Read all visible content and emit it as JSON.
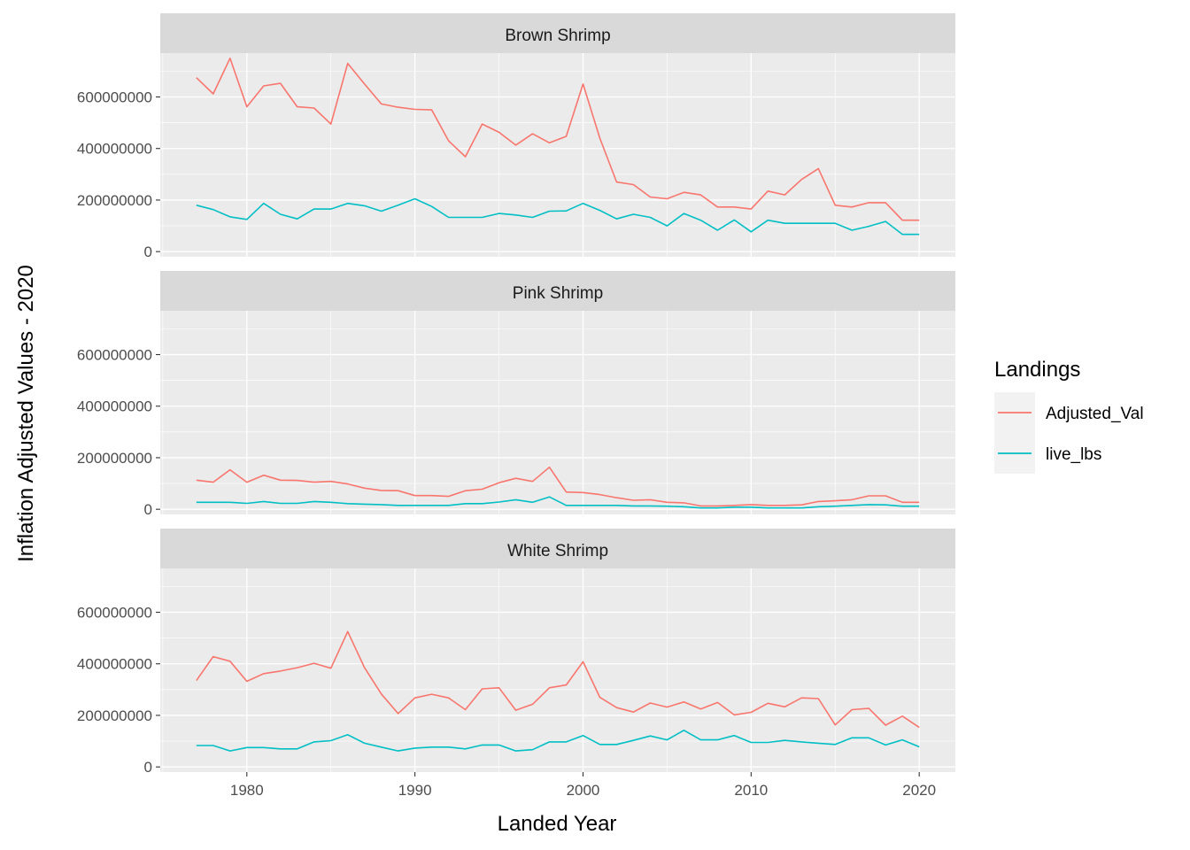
{
  "chart_data": {
    "type": "line",
    "xlabel": "Landed Year",
    "ylabel": "Inflation Adjusted Values - 2020",
    "xlim": [
      1974.85,
      1022.15
    ],
    "ylim": [
      -20000000,
      770000000
    ],
    "x_ticks": [
      1980,
      1990,
      2000,
      2010,
      2020
    ],
    "x_tick_labels": [
      "1980",
      "1990",
      "2000",
      "2010",
      "2020"
    ],
    "y_ticks": [
      0,
      200000000,
      400000000,
      600000000
    ],
    "y_tick_labels": [
      "0",
      "200000000",
      "400000000",
      "600000000"
    ],
    "grid": true,
    "legend": {
      "title": "Landings",
      "position": "right",
      "entries": [
        {
          "label": "Adjusted_Val",
          "color": "#F8766D"
        },
        {
          "label": "live_lbs",
          "color": "#00BFC4"
        }
      ]
    },
    "years": [
      1977,
      1978,
      1979,
      1980,
      1981,
      1982,
      1983,
      1984,
      1985,
      1986,
      1987,
      1988,
      1989,
      1990,
      1991,
      1992,
      1993,
      1994,
      1995,
      1996,
      1997,
      1998,
      1999,
      2000,
      2001,
      2002,
      2003,
      2004,
      2005,
      2006,
      2007,
      2008,
      2009,
      2010,
      2011,
      2012,
      2013,
      2014,
      2015,
      2016,
      2017,
      2018,
      2019,
      2020
    ],
    "panels": [
      {
        "strip": "Brown Shrimp",
        "series": [
          {
            "legend_label": "Adjusted_Val",
            "color": "#F8766D",
            "values": [
              675000000,
              612000000,
              750000000,
              562000000,
              643000000,
              653000000,
              562000000,
              557000000,
              495000000,
              730000000,
              650000000,
              573000000,
              560000000,
              552000000,
              550000000,
              430000000,
              368000000,
              495000000,
              463000000,
              413000000,
              457000000,
              422000000,
              447000000,
              650000000,
              440000000,
              270000000,
              260000000,
              212000000,
              205000000,
              230000000,
              220000000,
              173000000,
              173000000,
              165000000,
              235000000,
              220000000,
              280000000,
              322000000,
              180000000,
              173000000,
              190000000,
              190000000,
              122000000,
              122000000
            ]
          },
          {
            "legend_label": "live_lbs",
            "color": "#00BFC4",
            "values": [
              180000000,
              163000000,
              135000000,
              125000000,
              187000000,
              145000000,
              127000000,
              165000000,
              165000000,
              187000000,
              178000000,
              157000000,
              180000000,
              205000000,
              175000000,
              133000000,
              133000000,
              133000000,
              148000000,
              142000000,
              133000000,
              157000000,
              158000000,
              187000000,
              160000000,
              127000000,
              145000000,
              133000000,
              100000000,
              148000000,
              122000000,
              83000000,
              123000000,
              77000000,
              122000000,
              110000000,
              110000000,
              110000000,
              110000000,
              83000000,
              98000000,
              117000000,
              67000000,
              67000000
            ]
          }
        ]
      },
      {
        "strip": "Pink Shrimp",
        "series": [
          {
            "legend_label": "Adjusted_Val",
            "color": "#F8766D",
            "values": [
              113000000,
              105000000,
              153000000,
              105000000,
              132000000,
              113000000,
              112000000,
              105000000,
              108000000,
              98000000,
              82000000,
              73000000,
              72000000,
              53000000,
              53000000,
              50000000,
              72000000,
              78000000,
              103000000,
              120000000,
              108000000,
              163000000,
              67000000,
              65000000,
              57000000,
              45000000,
              35000000,
              37000000,
              27000000,
              25000000,
              13000000,
              13000000,
              15000000,
              18000000,
              15000000,
              15000000,
              17000000,
              30000000,
              33000000,
              37000000,
              52000000,
              52000000,
              27000000,
              27000000
            ]
          },
          {
            "legend_label": "live_lbs",
            "color": "#00BFC4",
            "values": [
              27000000,
              27000000,
              27000000,
              23000000,
              30000000,
              23000000,
              23000000,
              30000000,
              27000000,
              22000000,
              20000000,
              18000000,
              15000000,
              15000000,
              15000000,
              15000000,
              22000000,
              22000000,
              28000000,
              37000000,
              27000000,
              48000000,
              15000000,
              15000000,
              15000000,
              15000000,
              13000000,
              13000000,
              12000000,
              10000000,
              5000000,
              5000000,
              8000000,
              8000000,
              5000000,
              5000000,
              5000000,
              10000000,
              12000000,
              15000000,
              18000000,
              17000000,
              12000000,
              12000000
            ]
          }
        ]
      },
      {
        "strip": "White Shrimp",
        "series": [
          {
            "legend_label": "Adjusted_Val",
            "color": "#F8766D",
            "values": [
              335000000,
              428000000,
              410000000,
              332000000,
              362000000,
              372000000,
              385000000,
              402000000,
              383000000,
              525000000,
              385000000,
              283000000,
              207000000,
              268000000,
              282000000,
              268000000,
              222000000,
              303000000,
              307000000,
              220000000,
              243000000,
              307000000,
              318000000,
              408000000,
              270000000,
              230000000,
              213000000,
              248000000,
              232000000,
              252000000,
              225000000,
              250000000,
              202000000,
              212000000,
              247000000,
              233000000,
              268000000,
              265000000,
              163000000,
              222000000,
              227000000,
              162000000,
              197000000,
              153000000
            ]
          },
          {
            "legend_label": "live_lbs",
            "color": "#00BFC4",
            "values": [
              83000000,
              83000000,
              62000000,
              75000000,
              75000000,
              70000000,
              70000000,
              97000000,
              102000000,
              125000000,
              92000000,
              77000000,
              62000000,
              73000000,
              77000000,
              77000000,
              70000000,
              85000000,
              85000000,
              62000000,
              67000000,
              97000000,
              97000000,
              122000000,
              87000000,
              87000000,
              103000000,
              120000000,
              105000000,
              142000000,
              105000000,
              105000000,
              122000000,
              95000000,
              95000000,
              103000000,
              97000000,
              92000000,
              87000000,
              113000000,
              113000000,
              85000000,
              105000000,
              78000000
            ]
          }
        ]
      }
    ]
  }
}
